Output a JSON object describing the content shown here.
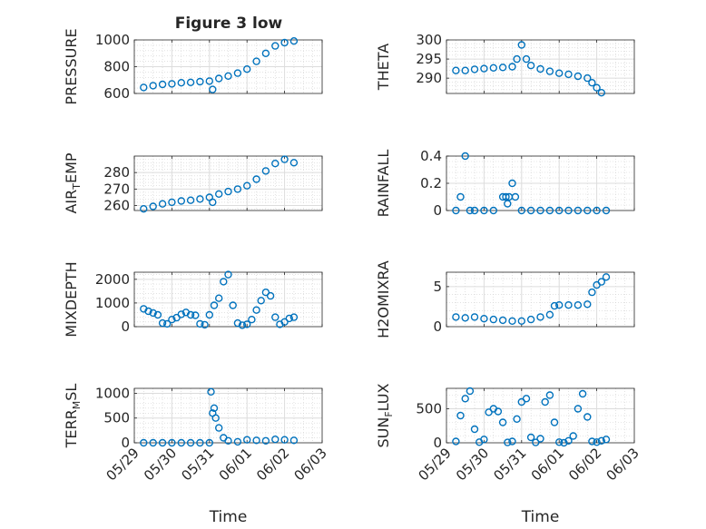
{
  "figure": {
    "title": "Figure 3 low",
    "marker_color": "#0072BD"
  },
  "chart_data": [
    {
      "type": "scatter",
      "ylabel": "PRESSURE",
      "xlim": [
        "05/29",
        "06/03"
      ],
      "ylim": [
        600,
        1000
      ],
      "yticks": [
        "600",
        "800",
        "1000"
      ],
      "xticks": [
        "05/29",
        "05/30",
        "05/31",
        "06/01",
        "06/02",
        "06/03"
      ],
      "x": [
        "05/29 06:00",
        "05/29 12:00",
        "05/29 18:00",
        "05/30 00:00",
        "05/30 06:00",
        "05/30 12:00",
        "05/30 18:00",
        "05/31 00:00",
        "05/31 02:00",
        "05/31 06:00",
        "05/31 12:00",
        "05/31 18:00",
        "06/01 00:00",
        "06/01 06:00",
        "06/01 12:00",
        "06/01 18:00",
        "06/02 00:00",
        "06/02 06:00"
      ],
      "y": [
        645,
        658,
        668,
        672,
        680,
        683,
        688,
        692,
        630,
        712,
        730,
        752,
        782,
        840,
        900,
        955,
        980,
        992
      ],
      "xlabel": ""
    },
    {
      "type": "scatter",
      "ylabel": "THETA",
      "xlim": [
        "05/29",
        "06/03"
      ],
      "ylim": [
        286,
        300
      ],
      "yticks": [
        "290",
        "295",
        "300"
      ],
      "xticks": [
        "05/29",
        "05/30",
        "05/31",
        "06/01",
        "06/02",
        "06/03"
      ],
      "x": [
        "05/29 06:00",
        "05/29 12:00",
        "05/29 18:00",
        "05/30 00:00",
        "05/30 06:00",
        "05/30 12:00",
        "05/30 18:00",
        "05/30 21:00",
        "05/31 00:00",
        "05/31 03:00",
        "05/31 06:00",
        "05/31 12:00",
        "05/31 18:00",
        "06/01 00:00",
        "06/01 06:00",
        "06/01 12:00",
        "06/01 18:00",
        "06/01 21:00",
        "06/02 00:00",
        "06/02 03:00"
      ],
      "y": [
        292,
        292,
        292.3,
        292.5,
        292.7,
        292.8,
        293,
        295,
        298.7,
        295,
        293.3,
        292.4,
        291.8,
        291.3,
        291,
        290.5,
        290,
        288.8,
        287.5,
        286.2
      ],
      "xlabel": ""
    },
    {
      "type": "scatter",
      "ylabel": "AIR_TEMP",
      "xlim": [
        "05/29",
        "06/03"
      ],
      "ylim": [
        257,
        290
      ],
      "yticks": [
        "260",
        "270",
        "280"
      ],
      "xticks": [
        "05/29",
        "05/30",
        "05/31",
        "06/01",
        "06/02",
        "06/03"
      ],
      "x": [
        "05/29 06:00",
        "05/29 12:00",
        "05/29 18:00",
        "05/30 00:00",
        "05/30 06:00",
        "05/30 12:00",
        "05/30 18:00",
        "05/31 00:00",
        "05/31 02:00",
        "05/31 06:00",
        "05/31 12:00",
        "05/31 18:00",
        "06/01 00:00",
        "06/01 06:00",
        "06/01 12:00",
        "06/01 18:00",
        "06/02 00:00",
        "06/02 06:00"
      ],
      "y": [
        258,
        259.5,
        261,
        262,
        262.8,
        263.2,
        264,
        265,
        262,
        267,
        268.5,
        270,
        272,
        276,
        281,
        285.5,
        288,
        286
      ],
      "xlabel": ""
    },
    {
      "type": "scatter",
      "ylabel": "RAINFALL",
      "xlim": [
        "05/29",
        "06/03"
      ],
      "ylim": [
        0,
        0.4
      ],
      "yticks": [
        "0",
        "0.2",
        "0.4"
      ],
      "xticks": [
        "05/29",
        "05/30",
        "05/31",
        "06/01",
        "06/02",
        "06/03"
      ],
      "x": [
        "05/29 06:00",
        "05/29 09:00",
        "05/29 12:00",
        "05/29 15:00",
        "05/29 18:00",
        "05/30 00:00",
        "05/30 06:00",
        "05/30 12:00",
        "05/30 14:00",
        "05/30 15:00",
        "05/30 16:00",
        "05/30 18:00",
        "05/30 20:00",
        "05/31 00:00",
        "05/31 06:00",
        "05/31 12:00",
        "05/31 18:00",
        "06/01 00:00",
        "06/01 06:00",
        "06/01 12:00",
        "06/01 18:00",
        "06/02 00:00",
        "06/02 06:00"
      ],
      "y": [
        0,
        0.1,
        0.4,
        0,
        0,
        0,
        0,
        0.1,
        0.1,
        0.05,
        0.1,
        0.2,
        0.1,
        0,
        0,
        0,
        0,
        0,
        0,
        0,
        0,
        0,
        0
      ],
      "xlabel": ""
    },
    {
      "type": "scatter",
      "ylabel": "MIXDEPTH",
      "xlim": [
        "05/29",
        "06/03"
      ],
      "ylim": [
        0,
        2300
      ],
      "yticks": [
        "0",
        "1000",
        "2000"
      ],
      "xticks": [
        "05/29",
        "05/30",
        "05/31",
        "06/01",
        "06/02",
        "06/03"
      ],
      "x": [
        "05/29 06:00",
        "05/29 09:00",
        "05/29 12:00",
        "05/29 15:00",
        "05/29 18:00",
        "05/29 21:00",
        "05/30 00:00",
        "05/30 03:00",
        "05/30 06:00",
        "05/30 09:00",
        "05/30 12:00",
        "05/30 15:00",
        "05/30 18:00",
        "05/30 21:00",
        "05/31 00:00",
        "05/31 03:00",
        "05/31 06:00",
        "05/31 09:00",
        "05/31 12:00",
        "05/31 15:00",
        "05/31 18:00",
        "05/31 21:00",
        "06/01 00:00",
        "06/01 03:00",
        "06/01 06:00",
        "06/01 09:00",
        "06/01 12:00",
        "06/01 15:00",
        "06/01 18:00",
        "06/01 21:00",
        "06/02 00:00",
        "06/02 03:00",
        "06/02 06:00"
      ],
      "y": [
        750,
        650,
        580,
        500,
        150,
        120,
        300,
        380,
        520,
        600,
        500,
        480,
        120,
        80,
        500,
        900,
        1200,
        1900,
        2200,
        900,
        150,
        60,
        100,
        300,
        700,
        1100,
        1450,
        1300,
        400,
        100,
        200,
        350,
        400
      ],
      "xlabel": ""
    },
    {
      "type": "scatter",
      "ylabel": "H2OMIXRA",
      "xlim": [
        "05/29",
        "06/03"
      ],
      "ylim": [
        0,
        6.8
      ],
      "yticks": [
        "0",
        "5"
      ],
      "xticks": [
        "05/29",
        "05/30",
        "05/31",
        "06/01",
        "06/02",
        "06/03"
      ],
      "x": [
        "05/29 06:00",
        "05/29 12:00",
        "05/29 18:00",
        "05/30 00:00",
        "05/30 06:00",
        "05/30 12:00",
        "05/30 18:00",
        "05/31 00:00",
        "05/31 06:00",
        "05/31 12:00",
        "05/31 18:00",
        "05/31 21:00",
        "06/01 00:00",
        "06/01 06:00",
        "06/01 12:00",
        "06/01 18:00",
        "06/01 21:00",
        "06/02 00:00",
        "06/02 03:00",
        "06/02 06:00"
      ],
      "y": [
        1.2,
        1.1,
        1.2,
        1,
        0.9,
        0.8,
        0.7,
        0.7,
        0.9,
        1.2,
        1.5,
        2.6,
        2.7,
        2.7,
        2.7,
        2.8,
        4.3,
        5.2,
        5.6,
        6.2
      ],
      "xlabel": ""
    },
    {
      "type": "scatter",
      "ylabel": "TERR_MSL",
      "xlim": [
        "05/29",
        "06/03"
      ],
      "ylim": [
        0,
        1100
      ],
      "yticks": [
        "0",
        "500",
        "1000"
      ],
      "xticks": [
        "05/29",
        "05/30",
        "05/31",
        "06/01",
        "06/02",
        "06/03"
      ],
      "x": [
        "05/29 06:00",
        "05/29 12:00",
        "05/29 18:00",
        "05/30 00:00",
        "05/30 06:00",
        "05/30 12:00",
        "05/30 18:00",
        "05/31 00:00",
        "05/31 01:00",
        "05/31 02:00",
        "05/31 03:00",
        "05/31 04:00",
        "05/31 06:00",
        "05/31 09:00",
        "05/31 12:00",
        "05/31 18:00",
        "06/01 00:00",
        "06/01 06:00",
        "06/01 12:00",
        "06/01 18:00",
        "06/02 00:00",
        "06/02 06:00"
      ],
      "y": [
        0,
        0,
        0,
        0,
        0,
        0,
        0,
        0,
        1030,
        600,
        700,
        500,
        300,
        100,
        40,
        20,
        60,
        50,
        40,
        70,
        60,
        50
      ],
      "xlabel": "Time"
    },
    {
      "type": "scatter",
      "ylabel": "SUN_FLUX",
      "xlim": [
        "05/29",
        "06/03"
      ],
      "ylim": [
        0,
        800
      ],
      "yticks": [
        "0",
        "500"
      ],
      "xticks": [
        "05/29",
        "05/30",
        "05/31",
        "06/01",
        "06/02",
        "06/03"
      ],
      "x": [
        "05/29 06:00",
        "05/29 09:00",
        "05/29 12:00",
        "05/29 15:00",
        "05/29 18:00",
        "05/29 21:00",
        "05/30 00:00",
        "05/30 03:00",
        "05/30 06:00",
        "05/30 09:00",
        "05/30 12:00",
        "05/30 15:00",
        "05/30 18:00",
        "05/30 21:00",
        "05/31 00:00",
        "05/31 03:00",
        "05/31 06:00",
        "05/31 09:00",
        "05/31 12:00",
        "05/31 15:00",
        "05/31 18:00",
        "05/31 21:00",
        "06/01 00:00",
        "06/01 03:00",
        "06/01 06:00",
        "06/01 09:00",
        "06/01 12:00",
        "06/01 15:00",
        "06/01 18:00",
        "06/01 21:00",
        "06/02 00:00",
        "06/02 03:00",
        "06/02 06:00"
      ],
      "y": [
        20,
        400,
        650,
        760,
        200,
        10,
        50,
        450,
        500,
        460,
        300,
        5,
        20,
        350,
        600,
        650,
        80,
        5,
        60,
        600,
        700,
        300,
        10,
        0,
        30,
        100,
        500,
        720,
        380,
        20,
        10,
        30,
        50
      ],
      "xlabel": "Time"
    }
  ]
}
